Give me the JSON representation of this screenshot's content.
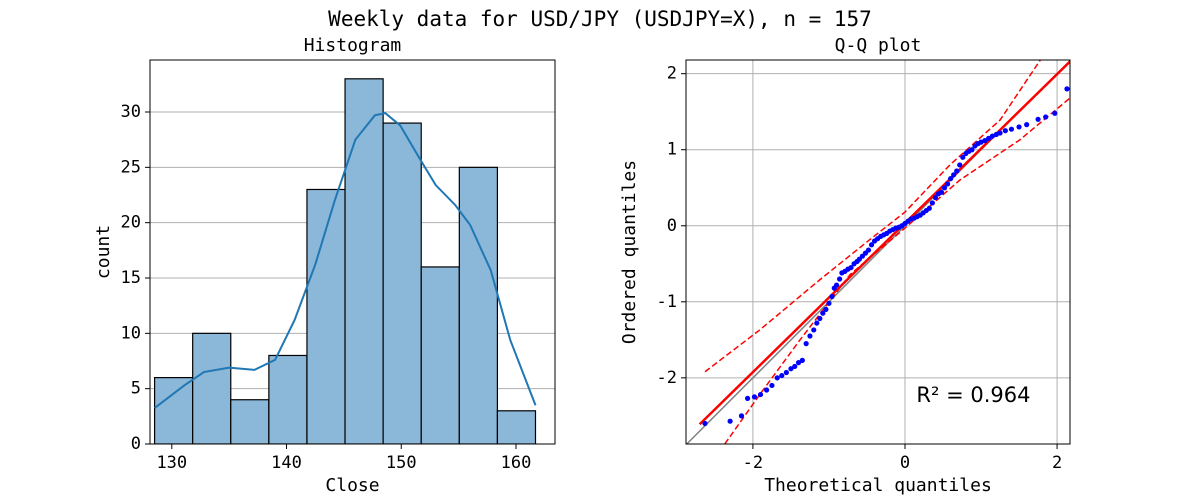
{
  "title": "Weekly data for USD/JPY (USDJPY=X), n = 157",
  "chart_data": [
    {
      "type": "histogram",
      "title": "Histogram",
      "x_label": "Close",
      "y_label": "count",
      "bins": [
        128.5,
        131.82,
        135.14,
        138.46,
        141.78,
        145.1,
        148.42,
        151.74,
        155.06,
        158.38,
        161.7
      ],
      "counts": [
        6,
        10,
        4,
        8,
        23,
        33,
        29,
        16,
        25,
        3
      ],
      "color": "#8bb8d9",
      "edge_color": "#000000",
      "kde": {
        "color": "#1f77b4",
        "x": [
          128.5,
          131.1,
          132.8,
          135,
          137.2,
          139,
          140.7,
          142.5,
          144.2,
          146,
          147.7,
          148.6,
          149.9,
          151.6,
          153,
          154.7,
          156,
          157.8,
          159.5,
          161.7
        ],
        "y": [
          3.25,
          5.3,
          6.5,
          6.9,
          6.7,
          7.6,
          11.2,
          16.2,
          22,
          27.5,
          29.7,
          29.9,
          28.8,
          25.8,
          23.4,
          21.6,
          19.8,
          15.7,
          9.4,
          3.5
        ]
      },
      "xlim": [
        128.1,
        163.4
      ],
      "ylim": [
        0,
        34.7
      ],
      "xticks": [
        130,
        140,
        150,
        160
      ],
      "yticks": [
        0,
        5,
        10,
        15,
        20,
        25,
        30
      ],
      "grid": "y"
    },
    {
      "type": "scatter",
      "title": "Q-Q plot",
      "x_label": "Theoretical quantiles",
      "y_label": "Ordered quantiles",
      "color": "#0000ff",
      "x": [
        -2.63,
        -2.3,
        -2.15,
        -2.07,
        -1.98,
        -1.9,
        -1.82,
        -1.75,
        -1.68,
        -1.62,
        -1.56,
        -1.5,
        -1.45,
        -1.4,
        -1.35,
        -1.3,
        -1.25,
        -1.2,
        -1.16,
        -1.12,
        -1.08,
        -1.04,
        -1.0,
        -0.96,
        -0.93,
        -0.9,
        -0.86,
        -0.83,
        -0.79,
        -0.75,
        -0.71,
        -0.67,
        -0.63,
        -0.6,
        -0.56,
        -0.52,
        -0.48,
        -0.44,
        -0.4,
        -0.36,
        -0.32,
        -0.28,
        -0.24,
        -0.2,
        -0.16,
        -0.12,
        -0.08,
        -0.04,
        0.0,
        0.04,
        0.08,
        0.12,
        0.16,
        0.2,
        0.24,
        0.28,
        0.32,
        0.36,
        0.4,
        0.44,
        0.48,
        0.52,
        0.56,
        0.6,
        0.64,
        0.68,
        0.72,
        0.76,
        0.8,
        0.84,
        0.88,
        0.92,
        0.96,
        1.0,
        1.05,
        1.1,
        1.15,
        1.2,
        1.25,
        1.32,
        1.4,
        1.5,
        1.6,
        1.75,
        1.85,
        1.97,
        2.13
      ],
      "y": [
        -2.6,
        -2.57,
        -2.5,
        -2.27,
        -2.25,
        -2.22,
        -2.16,
        -2.1,
        -2.0,
        -1.97,
        -1.93,
        -1.88,
        -1.85,
        -1.8,
        -1.77,
        -1.55,
        -1.45,
        -1.37,
        -1.28,
        -1.22,
        -1.15,
        -1.1,
        -1.02,
        -0.93,
        -0.82,
        -0.78,
        -0.7,
        -0.62,
        -0.6,
        -0.57,
        -0.55,
        -0.5,
        -0.47,
        -0.44,
        -0.4,
        -0.36,
        -0.32,
        -0.25,
        -0.2,
        -0.17,
        -0.14,
        -0.12,
        -0.1,
        -0.07,
        -0.05,
        -0.03,
        -0.02,
        0.0,
        0.03,
        0.06,
        0.09,
        0.1,
        0.12,
        0.14,
        0.17,
        0.2,
        0.23,
        0.3,
        0.37,
        0.42,
        0.44,
        0.5,
        0.55,
        0.62,
        0.67,
        0.72,
        0.8,
        0.9,
        0.95,
        0.98,
        1.0,
        1.05,
        1.08,
        1.1,
        1.12,
        1.15,
        1.18,
        1.2,
        1.22,
        1.25,
        1.27,
        1.3,
        1.33,
        1.4,
        1.43,
        1.48,
        1.8
      ],
      "reference_line": {
        "color": "#808080",
        "x": [
          -2.88,
          2.17
        ],
        "y": [
          -2.88,
          2.17
        ]
      },
      "fit_line": {
        "color": "#ff0000",
        "x": [
          -2.7,
          2.17
        ],
        "y": [
          -2.61,
          2.16
        ]
      },
      "band_upper": {
        "color": "#ff0000",
        "x": [
          -2.63,
          -1.91,
          -1.12,
          -0.46,
          0,
          0.59,
          1.25,
          1.78
        ],
        "y": [
          -1.92,
          -1.37,
          -0.71,
          -0.18,
          0.18,
          0.8,
          1.39,
          2.18
        ]
      },
      "band_lower": {
        "color": "#ff0000",
        "x": [
          -2.37,
          -1.91,
          -1.38,
          -0.72,
          0,
          0.72,
          1.51,
          2.17
        ],
        "y": [
          -2.87,
          -2.22,
          -1.5,
          -0.64,
          -0.03,
          0.6,
          1.13,
          1.68
        ]
      },
      "annotation": "R² = 0.964",
      "xlim": [
        -2.88,
        2.17
      ],
      "ylim": [
        -2.87,
        2.18
      ],
      "xticks": [
        -2,
        0,
        2
      ],
      "yticks": [
        -2,
        -1,
        0,
        1,
        2
      ],
      "grid": "both"
    }
  ]
}
